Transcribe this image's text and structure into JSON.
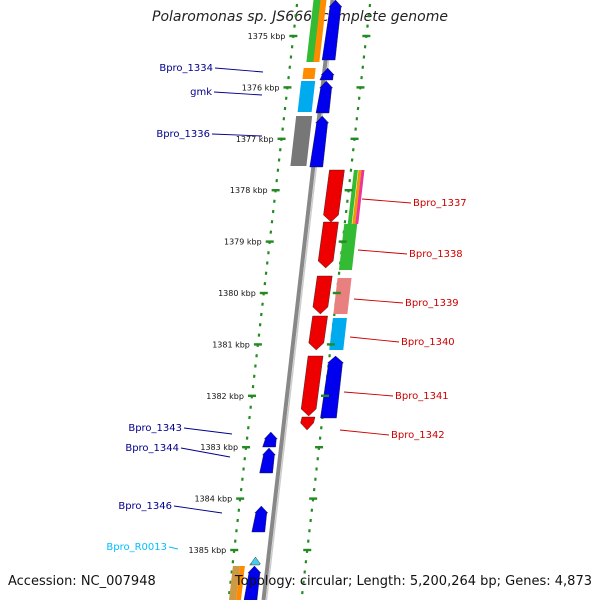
{
  "title": "Polaromonas sp. JS666, complete genome",
  "footer": {
    "accession": "Accession: NC_007948",
    "summary": "Topology: circular; Length: 5,200,264 bp; Genes: 4,873"
  },
  "colors": {
    "forward": "#0000ee",
    "reverse": "#ee0000",
    "forward_label": "#00008b",
    "reverse_label": "#cc0000",
    "rna_label": "#00bfff",
    "backbone": "#888888",
    "ruler": "#228b22"
  },
  "ticks": [
    "1375 kbp",
    "1376 kbp",
    "1377 kbp",
    "1378 kbp",
    "1379 kbp",
    "1380 kbp",
    "1381 kbp",
    "1382 kbp",
    "1383 kbp",
    "1384 kbp",
    "1385 kbp"
  ],
  "genes": [
    {
      "name": "Bpro_1334",
      "strand": "forward",
      "type": "CDS"
    },
    {
      "name": "gmk",
      "strand": "forward",
      "type": "CDS"
    },
    {
      "name": "Bpro_1336",
      "strand": "forward",
      "type": "CDS"
    },
    {
      "name": "Bpro_1337",
      "strand": "reverse",
      "type": "CDS"
    },
    {
      "name": "Bpro_1338",
      "strand": "reverse",
      "type": "CDS"
    },
    {
      "name": "Bpro_1339",
      "strand": "reverse",
      "type": "CDS"
    },
    {
      "name": "Bpro_1340",
      "strand": "reverse",
      "type": "CDS"
    },
    {
      "name": "Bpro_1341",
      "strand": "reverse",
      "type": "CDS"
    },
    {
      "name": "Bpro_1342",
      "strand": "reverse",
      "type": "CDS"
    },
    {
      "name": "Bpro_1343",
      "strand": "forward",
      "type": "CDS"
    },
    {
      "name": "Bpro_1344",
      "strand": "forward",
      "type": "CDS"
    },
    {
      "name": "Bpro_1346",
      "strand": "forward",
      "type": "CDS"
    },
    {
      "name": "Bpro_R0013",
      "strand": "forward",
      "type": "tRNA"
    }
  ]
}
